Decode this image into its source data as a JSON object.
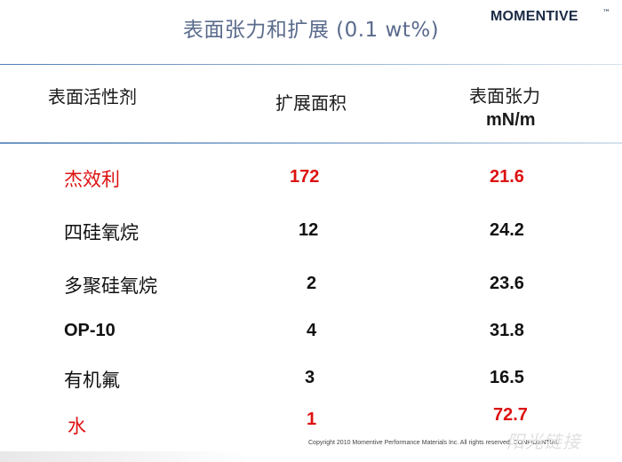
{
  "title": "表面张力和扩展 (0.1 wt%)",
  "logo": {
    "text": "MOMENTIVE",
    "mark": "™"
  },
  "headers": {
    "surfactant": "表面活性剂",
    "spread_area": "扩展面积",
    "surface_tension": "表面张力",
    "surface_tension_unit": "mN/m"
  },
  "rows": [
    {
      "name": "杰效利",
      "spread": "172",
      "tension": "21.6"
    },
    {
      "name": "四硅氧烷",
      "spread": "12",
      "tension": "24.2"
    },
    {
      "name": "多聚硅氧烷",
      "spread": "2",
      "tension": "23.6"
    },
    {
      "name": "OP-10",
      "spread": "4",
      "tension": "31.8"
    },
    {
      "name": "有机氟",
      "spread": "3",
      "tension": "16.5"
    },
    {
      "name": "水",
      "spread": "1",
      "tension": "72.7"
    }
  ],
  "highlight_color": "#dd1111",
  "copyright": "Copyright 2010  Momentive Performance Materials Inc. All rights reserved. CONFIDENTIAL",
  "watermark": "阳光链接"
}
